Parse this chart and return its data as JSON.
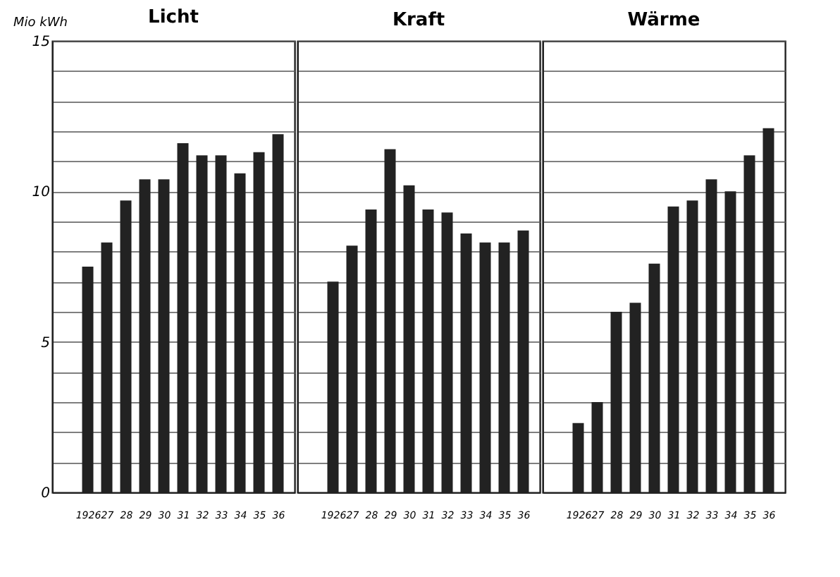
{
  "chart_data": [
    {
      "type": "bar",
      "title": "Licht",
      "ylabel": "Mio kWh",
      "categories": [
        "1926",
        "27",
        "28",
        "29",
        "30",
        "31",
        "32",
        "33",
        "34",
        "35",
        "36"
      ],
      "values": [
        7.5,
        8.3,
        9.7,
        10.4,
        10.4,
        11.6,
        11.2,
        11.2,
        10.6,
        11.3,
        11.9
      ],
      "color": "#222222",
      "ylim": [
        0,
        15
      ],
      "yticks": [
        0,
        {
          "value": 1,
          "label": null
        },
        {
          "value": 2,
          "label": null
        },
        {
          "value": 3,
          "label": null
        },
        {
          "value": 4,
          "label": null
        },
        5,
        {
          "value": 6,
          "label": null
        },
        {
          "value": 7,
          "label": null
        },
        {
          "value": 8,
          "label": null
        },
        {
          "value": 9,
          "label": null
        },
        10,
        {
          "value": 11,
          "label": null
        },
        {
          "value": 12,
          "label": null
        },
        {
          "value": 13,
          "label": null
        },
        {
          "value": 14,
          "label": null
        },
        15
      ],
      "grid": "y"
    },
    {
      "type": "bar",
      "title": "Kraft",
      "categories": [
        "1926",
        "27",
        "28",
        "29",
        "30",
        "31",
        "32",
        "33",
        "34",
        "35",
        "36"
      ],
      "values": [
        7.0,
        8.2,
        9.4,
        11.4,
        10.2,
        9.4,
        9.3,
        8.6,
        8.3,
        8.3,
        8.7
      ],
      "color": "#222222",
      "ylim": [
        0,
        15
      ],
      "yticks": [
        0,
        {
          "value": 1,
          "label": null
        },
        {
          "value": 2,
          "label": null
        },
        {
          "value": 3,
          "label": null
        },
        {
          "value": 4,
          "label": null
        },
        5,
        {
          "value": 6,
          "label": null
        },
        {
          "value": 7,
          "label": null
        },
        {
          "value": 8,
          "label": null
        },
        {
          "value": 9,
          "label": null
        },
        10,
        {
          "value": 11,
          "label": null
        },
        {
          "value": 12,
          "label": null
        },
        {
          "value": 13,
          "label": null
        },
        {
          "value": 14,
          "label": null
        },
        15
      ],
      "grid": "y",
      "tick_labels": "x"
    },
    {
      "type": "bar",
      "title": "Wärme",
      "categories": [
        "1926",
        "27",
        "28",
        "29",
        "30",
        "31",
        "32",
        "33",
        "34",
        "35",
        "36"
      ],
      "values": [
        2.3,
        3.0,
        6.0,
        6.3,
        7.6,
        9.5,
        9.7,
        10.4,
        10.0,
        11.2,
        12.1
      ],
      "color": "#222222",
      "ylim": [
        0,
        15
      ],
      "yticks": [
        0,
        {
          "value": 1,
          "label": null
        },
        {
          "value": 2,
          "label": null
        },
        {
          "value": 3,
          "label": null
        },
        {
          "value": 4,
          "label": null
        },
        5,
        {
          "value": 6,
          "label": null
        },
        {
          "value": 7,
          "label": null
        },
        {
          "value": 8,
          "label": null
        },
        {
          "value": 9,
          "label": null
        },
        10,
        {
          "value": 11,
          "label": null
        },
        {
          "value": 12,
          "label": null
        },
        {
          "value": 13,
          "label": null
        },
        {
          "value": 14,
          "label": null
        },
        15
      ],
      "grid": "y",
      "tick_labels": "x"
    }
  ]
}
